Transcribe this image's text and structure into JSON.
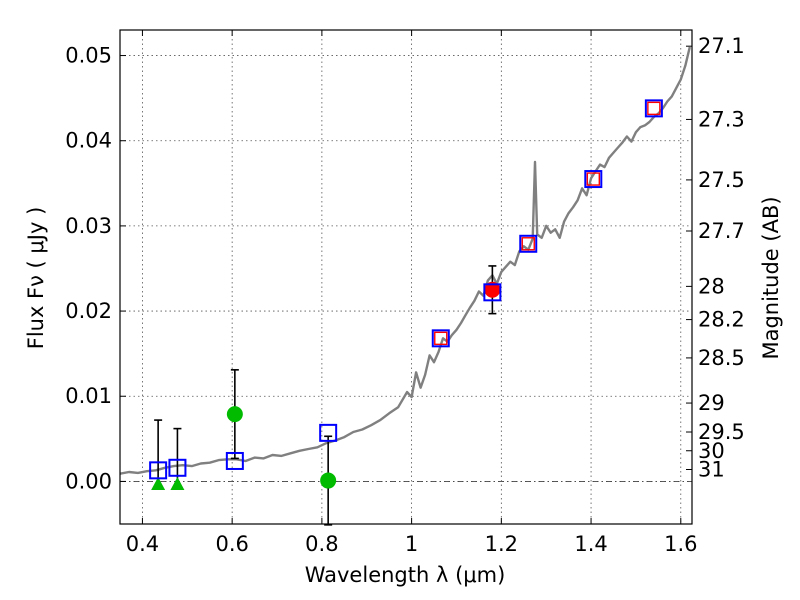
{
  "chart_data": {
    "type": "scatter",
    "xlabel": "Wavelength  λ (μm)",
    "ylabel": "Flux  Fν  ( μJy )",
    "ylabel_right": "Magnitude (AB)",
    "xlim": [
      0.35,
      1.625
    ],
    "ylim": [
      -0.005,
      0.053
    ],
    "grid": true,
    "x_ticks": [
      0.4,
      0.6,
      0.8,
      1.0,
      1.2,
      1.4,
      1.6
    ],
    "x_tick_labels": [
      "0.4",
      "0.6",
      "0.8",
      "1",
      "1.2",
      "1.4",
      "1.6"
    ],
    "y_ticks": [
      0.0,
      0.01,
      0.02,
      0.03,
      0.04,
      0.05
    ],
    "y_tick_labels": [
      "0.00",
      "0.01",
      "0.02",
      "0.03",
      "0.04",
      "0.05"
    ],
    "mag_ticks": [
      {
        "flux": 0.0511,
        "label": "27.1"
      },
      {
        "flux": 0.0425,
        "label": "27.3"
      },
      {
        "flux": 0.0354,
        "label": "27.5"
      },
      {
        "flux": 0.0294,
        "label": "27.7"
      },
      {
        "flux": 0.0229,
        "label": "28"
      },
      {
        "flux": 0.019,
        "label": "28.2"
      },
      {
        "flux": 0.0145,
        "label": "28.5"
      },
      {
        "flux": 0.0092,
        "label": "29"
      },
      {
        "flux": 0.0058,
        "label": "29.5"
      },
      {
        "flux": 0.0036,
        "label": "30"
      },
      {
        "flux": 0.0014,
        "label": "31"
      }
    ],
    "series": [
      {
        "name": "model_spectrum",
        "kind": "line",
        "color": "#808080",
        "x": [
          0.35,
          0.37,
          0.39,
          0.41,
          0.43,
          0.45,
          0.47,
          0.49,
          0.51,
          0.53,
          0.55,
          0.57,
          0.59,
          0.61,
          0.63,
          0.65,
          0.67,
          0.69,
          0.71,
          0.73,
          0.75,
          0.77,
          0.79,
          0.81,
          0.83,
          0.85,
          0.87,
          0.89,
          0.91,
          0.93,
          0.95,
          0.97,
          0.99,
          1.0,
          1.01,
          1.02,
          1.03,
          1.04,
          1.05,
          1.06,
          1.07,
          1.08,
          1.09,
          1.1,
          1.11,
          1.12,
          1.13,
          1.14,
          1.15,
          1.16,
          1.17,
          1.18,
          1.19,
          1.2,
          1.21,
          1.22,
          1.23,
          1.24,
          1.25,
          1.26,
          1.27,
          1.275,
          1.28,
          1.29,
          1.3,
          1.31,
          1.32,
          1.33,
          1.34,
          1.35,
          1.36,
          1.37,
          1.38,
          1.39,
          1.4,
          1.41,
          1.42,
          1.43,
          1.44,
          1.45,
          1.46,
          1.47,
          1.48,
          1.49,
          1.5,
          1.51,
          1.52,
          1.53,
          1.54,
          1.55,
          1.56,
          1.57,
          1.58,
          1.59,
          1.6,
          1.61,
          1.62
        ],
        "values": [
          0.0009,
          0.0011,
          0.001,
          0.0012,
          0.0013,
          0.0016,
          0.0018,
          0.0019,
          0.0018,
          0.0021,
          0.0022,
          0.0025,
          0.0026,
          0.0026,
          0.0024,
          0.0028,
          0.0027,
          0.0031,
          0.003,
          0.0033,
          0.0036,
          0.0038,
          0.004,
          0.0045,
          0.0048,
          0.0052,
          0.0058,
          0.0061,
          0.0066,
          0.0072,
          0.008,
          0.0087,
          0.0105,
          0.0099,
          0.0128,
          0.011,
          0.0125,
          0.0148,
          0.014,
          0.0152,
          0.0168,
          0.0164,
          0.0172,
          0.0178,
          0.0186,
          0.0195,
          0.0204,
          0.0212,
          0.0223,
          0.0218,
          0.0236,
          0.0242,
          0.0232,
          0.0246,
          0.0252,
          0.0258,
          0.0254,
          0.027,
          0.0276,
          0.0272,
          0.0285,
          0.0375,
          0.029,
          0.0286,
          0.03,
          0.0292,
          0.0296,
          0.0286,
          0.0305,
          0.0315,
          0.0322,
          0.033,
          0.0344,
          0.0336,
          0.0356,
          0.0364,
          0.0372,
          0.0369,
          0.038,
          0.0386,
          0.0392,
          0.0398,
          0.0405,
          0.0399,
          0.041,
          0.0416,
          0.0418,
          0.0422,
          0.0428,
          0.0432,
          0.0438,
          0.0446,
          0.0452,
          0.0462,
          0.0472,
          0.0488,
          0.051
        ]
      },
      {
        "name": "model_photometry",
        "kind": "open_square",
        "color": "#0000ff",
        "x": [
          0.435,
          0.478,
          0.606,
          0.814,
          1.065,
          1.18,
          1.26,
          1.405,
          1.54
        ],
        "values": [
          0.0013,
          0.0016,
          0.0024,
          0.0057,
          0.0168,
          0.0222,
          0.0279,
          0.0355,
          0.0438
        ]
      },
      {
        "name": "observed_red",
        "kind": "filled_circle",
        "color": "#ff0000",
        "x": [
          1.18
        ],
        "values": [
          0.0225
        ],
        "errors": [
          0.0028
        ]
      },
      {
        "name": "observed_red_squares",
        "kind": "small_square",
        "color": "#ff0000",
        "x": [
          1.065,
          1.26,
          1.405,
          1.54
        ],
        "values": [
          0.0168,
          0.0279,
          0.0355,
          0.0438
        ]
      },
      {
        "name": "observed_green_circles",
        "kind": "filled_circle",
        "color": "#00bb00",
        "x": [
          0.606,
          0.814
        ],
        "values": [
          0.0079,
          0.0001
        ],
        "errors": [
          0.0052,
          0.0052
        ]
      },
      {
        "name": "upper_limits_green",
        "kind": "triangle",
        "color": "#00bb00",
        "x": [
          0.435,
          0.478
        ],
        "values": [
          -0.0003,
          -0.0003
        ],
        "error_top": [
          0.0072,
          0.0062
        ]
      }
    ]
  }
}
